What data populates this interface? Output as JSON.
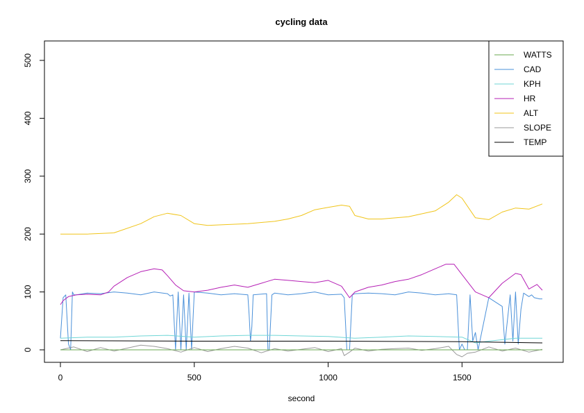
{
  "chart_data": {
    "type": "line",
    "title": "cycling data",
    "xlabel": "second",
    "ylabel": "",
    "xlim": [
      0,
      1800
    ],
    "ylim": [
      0,
      500
    ],
    "x_ticks": [
      0,
      500,
      1000,
      1500
    ],
    "y_ticks": [
      0,
      100,
      200,
      300,
      400,
      500
    ],
    "grid": false,
    "legend_position": "top-right",
    "series": [
      {
        "name": "WATTS",
        "color": "#6aa84f",
        "x": [
          0,
          1800
        ],
        "values": [
          0,
          0
        ]
      },
      {
        "name": "CAD",
        "color": "#4a90d9",
        "x": [
          0,
          10,
          20,
          30,
          38,
          45,
          50,
          60,
          100,
          150,
          200,
          250,
          300,
          350,
          400,
          410,
          420,
          430,
          440,
          450,
          460,
          470,
          480,
          490,
          500,
          550,
          600,
          650,
          700,
          705,
          710,
          715,
          720,
          770,
          775,
          780,
          790,
          800,
          850,
          900,
          950,
          1000,
          1050,
          1060,
          1070,
          1080,
          1090,
          1100,
          1150,
          1200,
          1250,
          1300,
          1350,
          1400,
          1450,
          1480,
          1490,
          1500,
          1510,
          1520,
          1530,
          1540,
          1550,
          1560,
          1600,
          1650,
          1660,
          1680,
          1690,
          1700,
          1710,
          1720,
          1730,
          1750,
          1760,
          1770,
          1790,
          1800
        ],
        "values": [
          20,
          90,
          95,
          10,
          0,
          100,
          95,
          95,
          98,
          97,
          100,
          98,
          95,
          100,
          97,
          93,
          95,
          0,
          100,
          0,
          95,
          0,
          98,
          0,
          100,
          98,
          95,
          97,
          95,
          60,
          15,
          40,
          95,
          97,
          0,
          0,
          95,
          98,
          95,
          97,
          100,
          95,
          96,
          90,
          0,
          0,
          95,
          97,
          98,
          97,
          95,
          100,
          98,
          95,
          97,
          95,
          0,
          10,
          0,
          0,
          95,
          15,
          30,
          0,
          90,
          75,
          10,
          95,
          15,
          100,
          10,
          70,
          98,
          92,
          95,
          90,
          88,
          88
        ]
      },
      {
        "name": "KPH",
        "color": "#6fd6d6",
        "x": [
          0,
          100,
          200,
          300,
          400,
          500,
          600,
          700,
          800,
          900,
          1000,
          1100,
          1200,
          1300,
          1400,
          1500,
          1550,
          1600,
          1700,
          1800
        ],
        "values": [
          20,
          22,
          22,
          24,
          25,
          22,
          24,
          25,
          25,
          24,
          23,
          20,
          22,
          24,
          23,
          22,
          12,
          15,
          20,
          20
        ]
      },
      {
        "name": "HR",
        "color": "#b51fb5",
        "x": [
          0,
          10,
          30,
          60,
          100,
          150,
          180,
          200,
          250,
          300,
          350,
          380,
          400,
          430,
          460,
          500,
          550,
          600,
          650,
          700,
          750,
          800,
          850,
          900,
          950,
          1000,
          1050,
          1080,
          1100,
          1150,
          1200,
          1250,
          1300,
          1350,
          1400,
          1440,
          1470,
          1500,
          1550,
          1600,
          1650,
          1700,
          1720,
          1750,
          1780,
          1800
        ],
        "values": [
          78,
          85,
          92,
          95,
          96,
          95,
          100,
          110,
          125,
          135,
          140,
          138,
          128,
          112,
          102,
          100,
          103,
          108,
          112,
          108,
          115,
          122,
          120,
          118,
          116,
          120,
          110,
          90,
          100,
          108,
          112,
          118,
          122,
          130,
          140,
          148,
          148,
          130,
          100,
          90,
          115,
          132,
          130,
          105,
          113,
          103
        ]
      },
      {
        "name": "ALT",
        "color": "#f0c419",
        "x": [
          0,
          100,
          200,
          300,
          350,
          400,
          450,
          500,
          550,
          600,
          700,
          800,
          850,
          900,
          950,
          1000,
          1050,
          1080,
          1100,
          1150,
          1200,
          1300,
          1400,
          1450,
          1480,
          1500,
          1550,
          1600,
          1650,
          1700,
          1750,
          1800
        ],
        "values": [
          200,
          200,
          202,
          218,
          230,
          236,
          232,
          218,
          215,
          216,
          218,
          222,
          226,
          232,
          242,
          246,
          250,
          248,
          232,
          226,
          226,
          230,
          240,
          255,
          268,
          262,
          228,
          225,
          238,
          245,
          243,
          252
        ]
      },
      {
        "name": "SLOPE",
        "color": "#999999",
        "x": [
          0,
          50,
          100,
          150,
          200,
          250,
          300,
          350,
          400,
          450,
          500,
          550,
          600,
          650,
          700,
          750,
          800,
          850,
          900,
          950,
          1000,
          1050,
          1060,
          1080,
          1100,
          1150,
          1200,
          1250,
          1300,
          1350,
          1400,
          1450,
          1480,
          1500,
          1520,
          1550,
          1600,
          1650,
          1700,
          1750,
          1800
        ],
        "values": [
          0,
          5,
          -3,
          4,
          -2,
          3,
          8,
          6,
          2,
          -4,
          4,
          -3,
          2,
          6,
          3,
          -5,
          2,
          -2,
          1,
          4,
          -3,
          2,
          -10,
          -4,
          3,
          -2,
          1,
          2,
          3,
          -1,
          2,
          6,
          -8,
          -12,
          -6,
          -4,
          5,
          -2,
          3,
          -4,
          1
        ]
      },
      {
        "name": "TEMP",
        "color": "#000000",
        "x": [
          0,
          500,
          1000,
          1500,
          1800
        ],
        "values": [
          16,
          15,
          15,
          14,
          12
        ]
      }
    ]
  }
}
